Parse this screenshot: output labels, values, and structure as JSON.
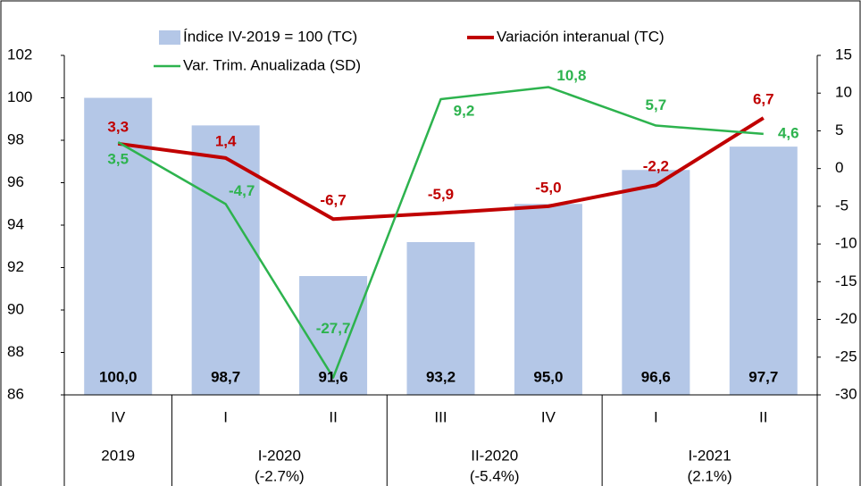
{
  "chart_data": {
    "type": "bar-line",
    "categories": [
      "IV",
      "I",
      "II",
      "III",
      "IV",
      "I",
      "II"
    ],
    "group_labels": [
      "2019",
      "I-2020",
      null,
      "II-2020",
      null,
      "I-2021",
      null
    ],
    "group_notes": [
      null,
      "(-2.7%)",
      null,
      "(-5.4%)",
      null,
      "(2.1%)",
      null
    ],
    "ylim": [
      86,
      102
    ],
    "yticks": [
      86,
      88,
      90,
      92,
      94,
      96,
      98,
      100,
      102
    ],
    "y2lim": [
      -30,
      15
    ],
    "y2ticks": [
      -30,
      -25,
      -20,
      -15,
      -10,
      -5,
      0,
      5,
      10,
      15
    ],
    "series": [
      {
        "name": "Índice IV-2019 = 100 (TC)",
        "kind": "bar",
        "color": "#b4c7e7",
        "values": [
          100.0,
          98.7,
          91.6,
          93.2,
          95.0,
          96.6,
          97.7
        ],
        "value_labels": [
          "100,0",
          "98,7",
          "91,6",
          "93,2",
          "95,0",
          "96,6",
          "97,7"
        ]
      },
      {
        "name": "Variación interanual (TC)",
        "kind": "line",
        "axis": "y2",
        "color": "#c00000",
        "values": [
          3.3,
          1.4,
          -6.7,
          -5.9,
          -5.0,
          -2.2,
          6.7
        ],
        "value_labels": [
          "3,3",
          "1,4",
          "-6,7",
          "-5,9",
          "-5,0",
          "-2,2",
          "6,7"
        ]
      },
      {
        "name": "Var. Trim. Anualizada (SD)",
        "kind": "line",
        "axis": "y2",
        "color": "#2db34e",
        "values": [
          3.5,
          -4.7,
          -27.7,
          9.2,
          10.8,
          5.7,
          4.6
        ],
        "value_labels": [
          "3,5",
          "-4,7",
          "-27,7",
          "9,2",
          "10,8",
          "5,7",
          "4,6"
        ]
      }
    ]
  }
}
